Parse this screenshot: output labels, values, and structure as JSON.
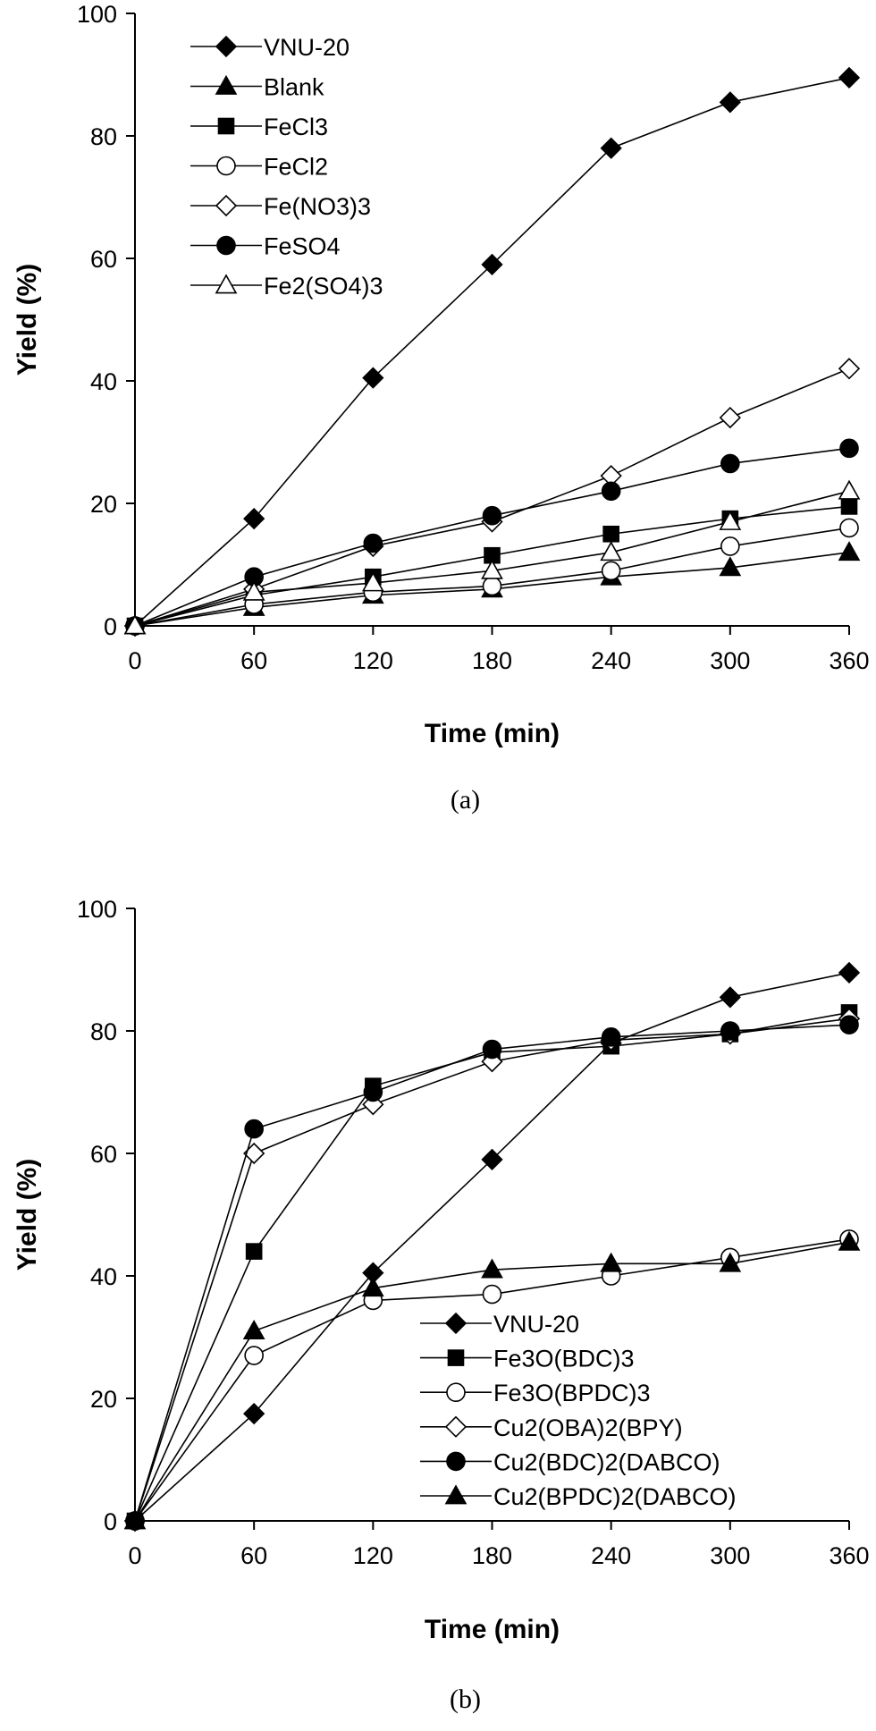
{
  "chart_data": [
    {
      "type": "line",
      "panel_label": "(a)",
      "xlabel": "Time (min)",
      "ylabel": "Yield (%)",
      "xlim": [
        0,
        360
      ],
      "ylim": [
        0,
        100
      ],
      "x_ticks": [
        0,
        60,
        120,
        180,
        240,
        300,
        360
      ],
      "y_ticks": [
        0,
        20,
        40,
        60,
        80,
        100
      ],
      "grid": false,
      "legend_position": "top-left",
      "x": [
        0,
        60,
        120,
        180,
        240,
        300,
        360
      ],
      "series": [
        {
          "name": "VNU-20",
          "marker": "diamond-filled",
          "values": [
            0,
            17.5,
            40.5,
            59,
            78,
            85.5,
            89.5
          ]
        },
        {
          "name": "Blank",
          "marker": "triangle-filled",
          "values": [
            0,
            3,
            5,
            6,
            8,
            9.5,
            12
          ]
        },
        {
          "name": "FeCl3",
          "marker": "square-filled",
          "values": [
            0,
            5,
            8,
            11.5,
            15,
            17.5,
            19.5
          ]
        },
        {
          "name": "FeCl2",
          "marker": "circle-open",
          "values": [
            0,
            3.5,
            5.5,
            6.5,
            9,
            13,
            16
          ]
        },
        {
          "name": "Fe(NO3)3",
          "marker": "diamond-open",
          "values": [
            0,
            6,
            13,
            17,
            24.5,
            34,
            42
          ]
        },
        {
          "name": "FeSO4",
          "marker": "circle-filled",
          "values": [
            0,
            8,
            13.5,
            18,
            22,
            26.5,
            29
          ]
        },
        {
          "name": "Fe2(SO4)3",
          "marker": "triangle-open",
          "values": [
            0,
            5.5,
            7,
            9,
            12,
            17,
            22
          ]
        }
      ]
    },
    {
      "type": "line",
      "panel_label": "(b)",
      "xlabel": "Time (min)",
      "ylabel": "Yield (%)",
      "xlim": [
        0,
        360
      ],
      "ylim": [
        0,
        100
      ],
      "x_ticks": [
        0,
        60,
        120,
        180,
        240,
        300,
        360
      ],
      "y_ticks": [
        0,
        20,
        40,
        60,
        80,
        100
      ],
      "grid": false,
      "legend_position": "bottom-right",
      "x": [
        0,
        60,
        120,
        180,
        240,
        300,
        360
      ],
      "series": [
        {
          "name": "VNU-20",
          "marker": "diamond-filled",
          "values": [
            0,
            17.5,
            40.5,
            59,
            78,
            85.5,
            89.5
          ]
        },
        {
          "name": "Fe3O(BDC)3",
          "marker": "square-filled",
          "values": [
            0,
            44,
            71,
            76.5,
            77.5,
            79.5,
            83
          ]
        },
        {
          "name": "Fe3O(BPDC)3",
          "marker": "circle-open",
          "values": [
            0,
            27,
            36,
            37,
            40,
            43,
            46
          ]
        },
        {
          "name": "Cu2(OBA)2(BPY)",
          "marker": "diamond-open",
          "values": [
            0,
            60,
            68,
            75,
            78.5,
            79.5,
            82
          ]
        },
        {
          "name": "Cu2(BDC)2(DABCO)",
          "marker": "circle-filled",
          "values": [
            0,
            64,
            70,
            77,
            79,
            80,
            81
          ]
        },
        {
          "name": "Cu2(BPDC)2(DABCO)",
          "marker": "triangle-filled",
          "values": [
            0,
            31,
            38,
            41,
            42,
            42,
            45.5
          ]
        }
      ]
    }
  ]
}
